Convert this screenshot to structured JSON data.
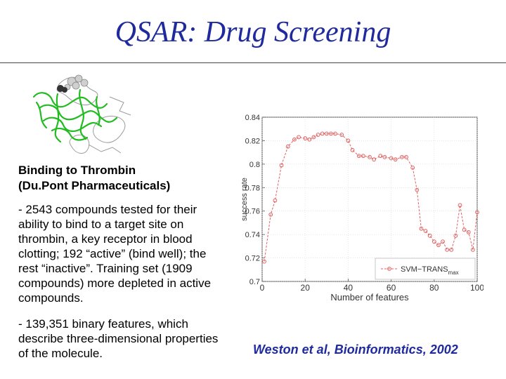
{
  "slide": {
    "title": "QSAR: Drug Screening",
    "subheading_line1": "Binding to Thrombin",
    "subheading_line2": "(Du.Pont Pharmaceuticals)",
    "paragraph1": "- 2543 compounds tested for their ability to bind to a target site on thrombin, a key receptor in blood clotting; 192 “active” (bind well); the rest “inactive”. Training set (1909 compounds) more depleted in active compounds.",
    "paragraph2": "- 139,351 binary features, which describe three-dimensional properties of the molecule.",
    "citation": "Weston et al, Bioinformatics, 2002"
  },
  "molecule_image": {
    "description_icon": "protein-structure-icon",
    "colors": {
      "backbone": "#22bb22",
      "chain": "#999999",
      "ligand": "#333333"
    }
  },
  "chart_data": {
    "type": "line",
    "title": "",
    "xlabel": "Number of features",
    "ylabel": "success rate",
    "xlim": [
      0,
      100
    ],
    "ylim": [
      0.7,
      0.84
    ],
    "xticks": [
      "0",
      "20",
      "40",
      "60",
      "80",
      "100"
    ],
    "yticks": [
      "0.7",
      "0.72",
      "0.74",
      "0.76",
      "0.78",
      "0.8",
      "0.82",
      "0.84"
    ],
    "legend": {
      "label": "SVM−TRANS",
      "subscript": "max",
      "position": "bottom-right"
    },
    "series": [
      {
        "name": "SVM-TRANSmax",
        "color": "#e06060",
        "x": [
          1,
          4,
          6,
          9,
          12,
          15,
          17,
          20,
          22,
          24,
          26,
          28,
          30,
          32,
          34,
          37,
          40,
          42,
          45,
          47,
          50,
          52,
          55,
          57,
          60,
          62,
          65,
          67,
          70,
          72,
          74,
          76,
          78,
          80,
          82,
          84,
          86,
          88,
          90,
          92,
          94,
          96,
          98,
          100
        ],
        "values": [
          0.717,
          0.757,
          0.769,
          0.799,
          0.815,
          0.821,
          0.823,
          0.822,
          0.821,
          0.823,
          0.825,
          0.826,
          0.826,
          0.826,
          0.826,
          0.825,
          0.82,
          0.812,
          0.807,
          0.807,
          0.806,
          0.804,
          0.807,
          0.806,
          0.805,
          0.804,
          0.806,
          0.806,
          0.797,
          0.778,
          0.745,
          0.743,
          0.739,
          0.734,
          0.731,
          0.734,
          0.727,
          0.727,
          0.739,
          0.765,
          0.744,
          0.742,
          0.727,
          0.759
        ]
      }
    ]
  }
}
